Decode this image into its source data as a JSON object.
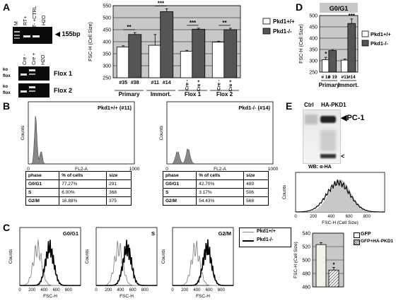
{
  "panels": {
    "A": "A",
    "B": "B",
    "C": "C",
    "D": "D",
    "E": "E"
  },
  "panel_a": {
    "gel_lanes": [
      "M",
      "RT+",
      "RT- +CTRL",
      "H2O"
    ],
    "band_label": "155bp",
    "flox_lanes": [
      "Cre -",
      "Cre +",
      "H2O"
    ],
    "flox1_label": "Flox 1",
    "flox2_label": "Flox 2",
    "ko_label": "ko",
    "flox_label": "flox"
  },
  "panel_b": {
    "hist1_title": "Pkd1+/+ (#11)",
    "hist2_title": "Pkd1-/- (#14)",
    "ylabel": "Counts",
    "xlabel": "FL2-A",
    "x0": "0",
    "x1": "1000",
    "table_headers": [
      "phase",
      "% of cells",
      "size"
    ],
    "table1": [
      [
        "G0/G1",
        "77.27%",
        "291"
      ],
      [
        "S",
        "6.00%",
        "368"
      ],
      [
        "G2/M",
        "16.88%",
        "375"
      ]
    ],
    "table2": [
      [
        "G0/G1",
        "42.70%",
        "489"
      ],
      [
        "S",
        "3.17%",
        "506"
      ],
      [
        "G2/M",
        "54.43%",
        "568"
      ]
    ]
  },
  "panel_c": {
    "ylabel": "Counts",
    "xlabel": "FSC-H",
    "titles": [
      "G0/G1",
      "S",
      "G2/M"
    ],
    "ticks": [
      "0",
      "200",
      "400",
      "600",
      "800"
    ],
    "legend": [
      "Pkd1+/+",
      "Pkd1-/-"
    ]
  },
  "panel_d": {
    "title": "G0/G1"
  },
  "panel_e": {
    "blot_lanes": [
      "Ctrl",
      "HA-PKD1"
    ],
    "pc1_label": "PC-1",
    "arrow_small": "<",
    "wb_label": "WB: α-HA",
    "hist_ylabel": "Counts",
    "hist_xlabel": "FSC-H (Cell Size)",
    "ticks": [
      "0",
      "200",
      "400",
      "600",
      "800"
    ],
    "legend": [
      "GFP",
      "GFP+HA-PKD1"
    ]
  },
  "chart_data": [
    {
      "type": "bar",
      "id": "A",
      "ylabel": "FSC-H (Cell Size)",
      "ylim": [
        250,
        550
      ],
      "yticks": [
        250,
        300,
        350,
        400,
        450,
        500,
        550
      ],
      "groups": [
        "Primary",
        "Immort.",
        "Flox 1",
        "Flox 2"
      ],
      "categories": [
        "#35",
        "#38",
        "#11",
        "#14",
        "Cre -",
        "Cre +",
        "Cre -",
        "Cre +"
      ],
      "values": [
        378,
        430,
        385,
        525,
        360,
        452,
        398,
        450
      ],
      "errors": [
        5,
        8,
        45,
        12,
        4,
        4,
        4,
        6
      ],
      "series_of": [
        "wt",
        "ko",
        "wt",
        "ko",
        "wt",
        "ko",
        "wt",
        "ko"
      ],
      "significance": [
        "**",
        "***",
        "***",
        "**"
      ],
      "legend": [
        "Pkd1+/+",
        "Pkd1-/-"
      ],
      "colors": {
        "wt": "#ffffff",
        "ko": "#555555",
        "bg": "#c8c8c8"
      }
    },
    {
      "type": "bar",
      "id": "D",
      "ylabel": "FSC-H (Cell Size)",
      "ylim": [
        250,
        500
      ],
      "yticks": [
        250,
        300,
        350,
        400,
        450,
        500
      ],
      "groups": [
        "Primary",
        "Immort."
      ],
      "categories": [
        "# 16",
        "# 19",
        "#11",
        "#14"
      ],
      "values": [
        305,
        345,
        303,
        465
      ],
      "errors": [
        10,
        5,
        5,
        20
      ],
      "series_of": [
        "wt",
        "ko",
        "wt",
        "ko"
      ],
      "significance": [
        "*",
        "",
        "",
        "***"
      ],
      "legend": [
        "Pkd1+/+",
        "Pkd1-/-"
      ],
      "colors": {
        "wt": "#ffffff",
        "ko": "#555555",
        "bg": "#c8c8c8"
      }
    },
    {
      "type": "bar",
      "id": "E",
      "ylabel": "FSC-H (Cell Size)",
      "ylim": [
        460,
        540
      ],
      "yticks": [
        460,
        480,
        500,
        520,
        540
      ],
      "categories": [
        "GFP",
        "GFP+HA-PKD1"
      ],
      "values": [
        523,
        485
      ],
      "errors": [
        3,
        4
      ],
      "significance": [
        "",
        "*"
      ],
      "legend": [
        "GFP",
        "GFP+HA-PKD1"
      ],
      "colors": {
        "gfp": "#f2f2e6",
        "pkd": "#9a9a9a",
        "bg": "#c8c8c8"
      }
    }
  ]
}
